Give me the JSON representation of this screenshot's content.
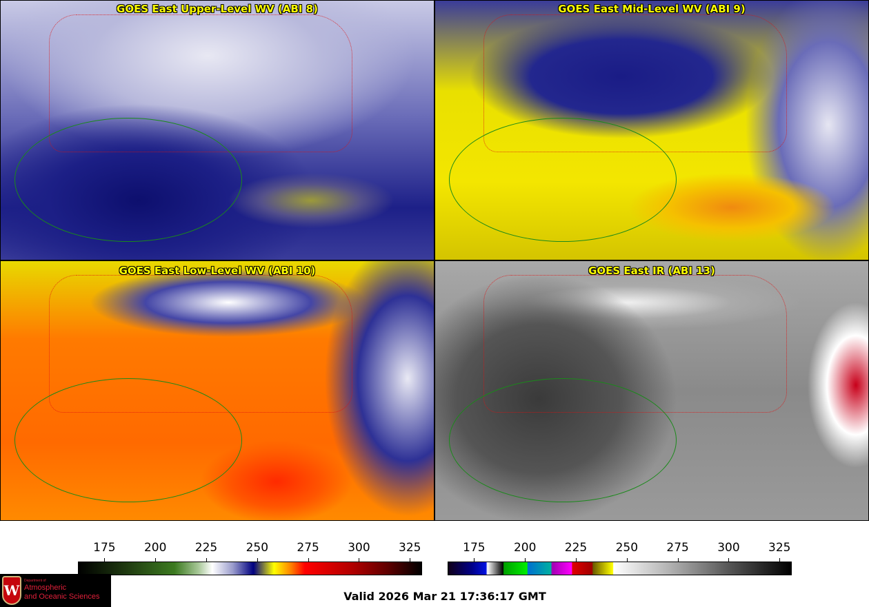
{
  "panels": [
    {
      "title": "GOES East Upper-Level WV (ABI 8)"
    },
    {
      "title": "GOES East Mid-Level WV (ABI 9)"
    },
    {
      "title": "GOES East Low-Level WV (ABI 10)"
    },
    {
      "title": "GOES East IR (ABI 13)"
    }
  ],
  "colorbars": [
    {
      "name": "water-vapor",
      "ticks": [
        "175",
        "200",
        "225",
        "250",
        "275",
        "300",
        "325"
      ],
      "range": [
        162,
        331
      ]
    },
    {
      "name": "infrared",
      "ticks": [
        "175",
        "200",
        "225",
        "250",
        "275",
        "300",
        "325"
      ],
      "range": [
        162,
        331
      ]
    }
  ],
  "logo": {
    "line1": "Department of",
    "line2": "Atmospheric",
    "line3": "and Oceanic Sciences",
    "crest": "W"
  },
  "valid_time": "Valid 2026 Mar 21 17:36:17 GMT"
}
